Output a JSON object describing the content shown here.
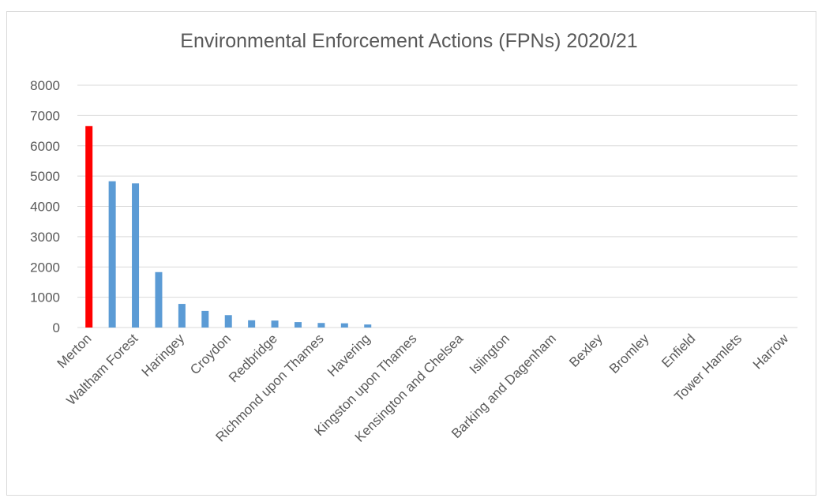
{
  "chart_data": {
    "type": "bar",
    "title": "Environmental Enforcement Actions (FPNs) 2020/21",
    "xlabel": "",
    "ylabel": "",
    "ylim": [
      0,
      8000
    ],
    "yticks": [
      0,
      1000,
      2000,
      3000,
      4000,
      5000,
      6000,
      7000,
      8000
    ],
    "ytick_labels": [
      "0",
      "1000",
      "2000",
      "3000",
      "4000",
      "5000",
      "6000",
      "7000",
      "8000"
    ],
    "grid": true,
    "legend": "none",
    "categories": [
      "Merton",
      "",
      "Waltham Forest",
      "",
      "Haringey",
      "",
      "Croydon",
      "",
      "Redbridge",
      "",
      "Richmond upon Thames",
      "",
      "Havering",
      "",
      "Kingston upon Thames",
      "",
      "Kensington and Chelsea",
      "",
      "Islington",
      "",
      "Barking and Dagenham",
      "",
      "Bexley",
      "",
      "Bromley",
      "",
      "Enfield",
      "",
      "Tower Hamlets",
      "",
      "Harrow"
    ],
    "values": [
      6650,
      4830,
      4760,
      1830,
      780,
      550,
      410,
      240,
      230,
      180,
      150,
      140,
      100,
      0,
      0,
      0,
      0,
      0,
      0,
      0,
      0,
      0,
      0,
      0,
      0,
      0,
      0,
      0,
      0,
      0,
      0
    ],
    "highlight_category": "Merton",
    "colors": {
      "highlight": "#ff0000",
      "bar": "#5b9bd5",
      "grid": "#d9d9d9",
      "text": "#595959"
    }
  }
}
